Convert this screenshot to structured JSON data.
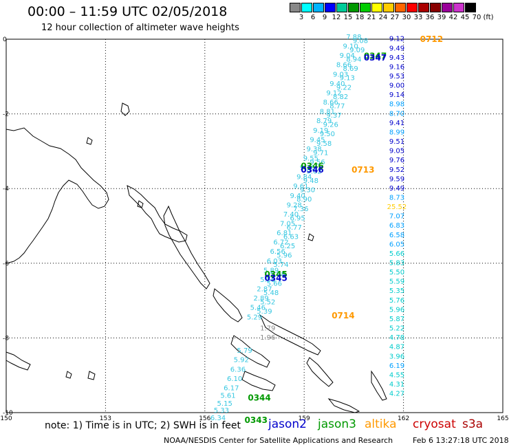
{
  "header": {
    "title": "00:00 – 11:59 UTC 02/05/2018",
    "subtitle": "12 hour collection of altimeter wave heights"
  },
  "scale": {
    "unit": "(ft)",
    "labels": [
      "3",
      "6",
      "9",
      "12",
      "15",
      "18",
      "21",
      "24",
      "27",
      "30",
      "33",
      "36",
      "39",
      "42",
      "45",
      "70"
    ],
    "colors": [
      "#888888",
      "#00ffff",
      "#00b4ff",
      "#0000ff",
      "#00cc99",
      "#009900",
      "#00cc00",
      "#ffff00",
      "#ffcc00",
      "#ff6600",
      "#ff0000",
      "#aa0000",
      "#880000",
      "#990099",
      "#cc33cc",
      "#000000"
    ]
  },
  "axes": {
    "x_ticks": [
      "150",
      "153",
      "156",
      "159",
      "162",
      "165"
    ],
    "y_ticks": [
      "0",
      "-2",
      "-4",
      "-6",
      "-8",
      "-10"
    ]
  },
  "footer": {
    "note": "note:  1) Time is in UTC;  2) SWH is in feet",
    "legend": [
      {
        "name": "jason2",
        "color": "#0000cc"
      },
      {
        "name": "jason3",
        "color": "#009900"
      },
      {
        "name": "altika",
        "color": "#ff9900"
      },
      {
        "name": "cryosat",
        "color": "#cc0000"
      },
      {
        "name": "s3a",
        "color": "#aa0000"
      }
    ],
    "credit": "NOAA/NESDIS Center for Satellite Applications and Research",
    "generated": "Feb  6 13:27:18 UTC 2018"
  },
  "tracks": {
    "altika_lon": 161.8,
    "altika": [
      {
        "lat": -0.05,
        "v": "9.12"
      },
      {
        "lat": -0.3,
        "v": "9.49"
      },
      {
        "lat": -0.55,
        "v": "9.43"
      },
      {
        "lat": -0.8,
        "v": "9.16"
      },
      {
        "lat": -1.05,
        "v": "9.53"
      },
      {
        "lat": -1.3,
        "v": "9.00"
      },
      {
        "lat": -1.55,
        "v": "9.14"
      },
      {
        "lat": -1.8,
        "v": "8.98"
      },
      {
        "lat": -2.05,
        "v": "8.70"
      },
      {
        "lat": -2.3,
        "v": "9.41"
      },
      {
        "lat": -2.55,
        "v": "8.99"
      },
      {
        "lat": -2.8,
        "v": "9.51"
      },
      {
        "lat": -3.05,
        "v": "9.05"
      },
      {
        "lat": -3.3,
        "v": "9.76"
      },
      {
        "lat": -3.55,
        "v": "9.52"
      },
      {
        "lat": -3.8,
        "v": "9.59"
      },
      {
        "lat": -4.05,
        "v": "9.49"
      },
      {
        "lat": -4.3,
        "v": "8.73"
      },
      {
        "lat": -4.55,
        "v": "25.52"
      },
      {
        "lat": -4.8,
        "v": "7.07"
      },
      {
        "lat": -5.05,
        "v": "6.83"
      },
      {
        "lat": -5.3,
        "v": "6.58"
      },
      {
        "lat": -5.55,
        "v": "6.05"
      },
      {
        "lat": -5.8,
        "v": "5.66"
      },
      {
        "lat": -6.05,
        "v": "5.83"
      },
      {
        "lat": -6.3,
        "v": "5.50"
      },
      {
        "lat": -6.55,
        "v": "5.59"
      },
      {
        "lat": -6.8,
        "v": "5.35"
      },
      {
        "lat": -7.05,
        "v": "5.76"
      },
      {
        "lat": -7.3,
        "v": "5.96"
      },
      {
        "lat": -7.55,
        "v": "5.87"
      },
      {
        "lat": -7.8,
        "v": "5.22"
      },
      {
        "lat": -8.05,
        "v": "4.78"
      },
      {
        "lat": -8.3,
        "v": "4.87"
      },
      {
        "lat": -8.55,
        "v": "3.96"
      },
      {
        "lat": -8.8,
        "v": "6.19"
      },
      {
        "lat": -9.05,
        "v": "4.55"
      },
      {
        "lat": -9.3,
        "v": "4.31"
      },
      {
        "lat": -9.55,
        "v": "4.27"
      }
    ],
    "jason_track_a": [
      {
        "lat": 0.0,
        "lon": 160.5,
        "v": "7.88"
      },
      {
        "lat": -0.25,
        "lon": 160.4,
        "v": "9.10"
      },
      {
        "lat": -0.5,
        "lon": 160.3,
        "v": "9.04"
      },
      {
        "lat": -0.75,
        "lon": 160.2,
        "v": "8.66"
      },
      {
        "lat": -1.0,
        "lon": 160.1,
        "v": "9.03"
      },
      {
        "lat": -1.25,
        "lon": 160.0,
        "v": "9.40"
      },
      {
        "lat": -1.5,
        "lon": 159.9,
        "v": "9.12"
      },
      {
        "lat": -1.75,
        "lon": 159.8,
        "v": "8.66"
      },
      {
        "lat": -2.0,
        "lon": 159.7,
        "v": "8.81"
      },
      {
        "lat": -2.25,
        "lon": 159.6,
        "v": "8.79"
      },
      {
        "lat": -2.5,
        "lon": 159.5,
        "v": "9.19"
      },
      {
        "lat": -2.75,
        "lon": 159.4,
        "v": "9.45"
      },
      {
        "lat": -3.0,
        "lon": 159.3,
        "v": "9.38"
      },
      {
        "lat": -3.25,
        "lon": 159.2,
        "v": "9.55"
      },
      {
        "lat": -3.5,
        "lon": 159.1,
        "v": "9.76"
      },
      {
        "lat": -3.75,
        "lon": 159.0,
        "v": "9.84"
      },
      {
        "lat": -4.0,
        "lon": 158.9,
        "v": "9.61"
      },
      {
        "lat": -4.25,
        "lon": 158.8,
        "v": "9.40"
      },
      {
        "lat": -4.5,
        "lon": 158.7,
        "v": "9.28"
      },
      {
        "lat": -4.75,
        "lon": 158.6,
        "v": "7.40"
      },
      {
        "lat": -5.0,
        "lon": 158.5,
        "v": "7.05"
      },
      {
        "lat": -5.25,
        "lon": 158.4,
        "v": "6.81"
      },
      {
        "lat": -5.5,
        "lon": 158.3,
        "v": "6.72"
      },
      {
        "lat": -5.75,
        "lon": 158.2,
        "v": "6.56"
      },
      {
        "lat": -6.0,
        "lon": 158.1,
        "v": "6.03"
      },
      {
        "lat": -6.25,
        "lon": 158.0,
        "v": "5.89"
      },
      {
        "lat": -6.5,
        "lon": 157.9,
        "v": "5.58"
      },
      {
        "lat": -6.75,
        "lon": 157.8,
        "v": "2.87"
      },
      {
        "lat": -7.0,
        "lon": 157.7,
        "v": "2.89"
      },
      {
        "lat": -7.25,
        "lon": 157.6,
        "v": "5.46"
      },
      {
        "lat": -7.5,
        "lon": 157.5,
        "v": "5.29"
      }
    ],
    "jason_track_b": [
      {
        "lat": -0.1,
        "lon": 160.7,
        "v": "9.08"
      },
      {
        "lat": -0.35,
        "lon": 160.6,
        "v": "9.09"
      },
      {
        "lat": -0.6,
        "lon": 160.5,
        "v": "8.94"
      },
      {
        "lat": -0.85,
        "lon": 160.4,
        "v": "8.69"
      },
      {
        "lat": -1.1,
        "lon": 160.3,
        "v": "9.13"
      },
      {
        "lat": -1.35,
        "lon": 160.2,
        "v": "9.22"
      },
      {
        "lat": -1.6,
        "lon": 160.1,
        "v": "8.82"
      },
      {
        "lat": -1.85,
        "lon": 160.0,
        "v": "8.77"
      },
      {
        "lat": -2.1,
        "lon": 159.9,
        "v": "9.37"
      },
      {
        "lat": -2.35,
        "lon": 159.8,
        "v": "9.26"
      },
      {
        "lat": -2.6,
        "lon": 159.7,
        "v": "9.50"
      },
      {
        "lat": -2.85,
        "lon": 159.6,
        "v": "9.58"
      },
      {
        "lat": -3.1,
        "lon": 159.5,
        "v": "9.71"
      },
      {
        "lat": -3.35,
        "lon": 159.4,
        "v": "9.56"
      },
      {
        "lat": -3.6,
        "lon": 159.3,
        "v": "9.62"
      },
      {
        "lat": -3.85,
        "lon": 159.2,
        "v": "9.48"
      },
      {
        "lat": -4.1,
        "lon": 159.1,
        "v": "9.30"
      },
      {
        "lat": -4.35,
        "lon": 159.0,
        "v": "8.90"
      },
      {
        "lat": -4.6,
        "lon": 158.9,
        "v": "7.36"
      },
      {
        "lat": -4.85,
        "lon": 158.8,
        "v": "6.95"
      },
      {
        "lat": -5.1,
        "lon": 158.7,
        "v": "6.77"
      },
      {
        "lat": -5.35,
        "lon": 158.6,
        "v": "6.63"
      },
      {
        "lat": -5.6,
        "lon": 158.5,
        "v": "6.25"
      },
      {
        "lat": -5.85,
        "lon": 158.4,
        "v": "5.96"
      },
      {
        "lat": -6.1,
        "lon": 158.3,
        "v": "5.74"
      },
      {
        "lat": -6.35,
        "lon": 158.2,
        "v": "5.68"
      },
      {
        "lat": -6.6,
        "lon": 158.1,
        "v": "5.66"
      },
      {
        "lat": -6.85,
        "lon": 158.0,
        "v": "5.48"
      },
      {
        "lat": -7.1,
        "lon": 157.9,
        "v": "5.52"
      },
      {
        "lat": -7.35,
        "lon": 157.8,
        "v": "5.39"
      }
    ],
    "grey_points": [
      {
        "lat": -7.8,
        "lon": 157.9,
        "v": "1.79"
      },
      {
        "lat": -8.05,
        "lon": 157.9,
        "v": "1.96"
      }
    ],
    "south_track": [
      {
        "lat": -8.4,
        "lon": 157.2,
        "v": "5.79"
      },
      {
        "lat": -8.65,
        "lon": 157.1,
        "v": "5.92"
      },
      {
        "lat": -8.9,
        "lon": 157.0,
        "v": "6.36"
      },
      {
        "lat": -9.15,
        "lon": 156.9,
        "v": "6.10"
      },
      {
        "lat": -9.4,
        "lon": 156.8,
        "v": "6.17"
      },
      {
        "lat": -9.6,
        "lon": 156.7,
        "v": "5.61"
      },
      {
        "lat": -9.82,
        "lon": 156.6,
        "v": "5.15"
      },
      {
        "lat": -10.0,
        "lon": 156.5,
        "v": "5.33"
      },
      {
        "lat": -10.2,
        "lon": 156.4,
        "v": "6.34"
      }
    ],
    "times": [
      {
        "lat": 0.0,
        "lon": 162.5,
        "v": "0712",
        "color": "#ff9900"
      },
      {
        "lat": -0.45,
        "lon": 160.8,
        "v": "0347",
        "color": "#009900"
      },
      {
        "lat": -0.5,
        "lon": 160.8,
        "v": "0347",
        "color": "#0000cc"
      },
      {
        "lat": -3.5,
        "lon": 159.6,
        "v": "0713",
        "color": "#ff9900",
        "dx": 40
      },
      {
        "lat": -3.4,
        "lon": 158.9,
        "v": "0346",
        "color": "#009900"
      },
      {
        "lat": -3.5,
        "lon": 158.9,
        "v": "0346",
        "color": "#0000cc"
      },
      {
        "lat": -6.3,
        "lon": 157.8,
        "v": "0345",
        "color": "#009900"
      },
      {
        "lat": -6.4,
        "lon": 157.8,
        "v": "0345",
        "color": "#0000cc"
      },
      {
        "lat": -7.4,
        "lon": 159.0,
        "v": "0714",
        "color": "#ff9900",
        "dx": 40
      },
      {
        "lat": -9.6,
        "lon": 157.3,
        "v": "0344",
        "color": "#009900"
      },
      {
        "lat": -10.2,
        "lon": 157.2,
        "v": "0343",
        "color": "#009900"
      }
    ]
  }
}
